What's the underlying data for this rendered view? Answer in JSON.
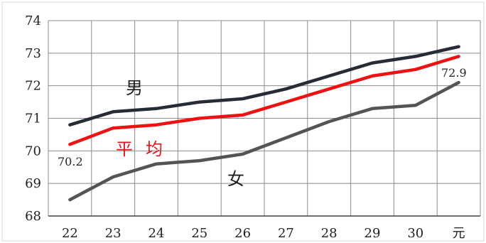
{
  "chart_data": {
    "type": "line",
    "categories": [
      "22",
      "23",
      "24",
      "25",
      "26",
      "27",
      "28",
      "29",
      "30",
      "元"
    ],
    "ylim": [
      68,
      74
    ],
    "yticks": [
      68,
      69,
      70,
      71,
      72,
      73,
      74
    ],
    "grid": true,
    "series": [
      {
        "name": "男",
        "color": "#262b36",
        "values": [
          70.8,
          71.2,
          71.3,
          71.5,
          71.6,
          71.9,
          72.3,
          72.7,
          72.9,
          73.2
        ]
      },
      {
        "name": "平均",
        "color": "#ee1111",
        "values": [
          70.2,
          70.7,
          70.8,
          71.0,
          71.1,
          71.5,
          71.9,
          72.3,
          72.5,
          72.9
        ]
      },
      {
        "name": "女",
        "color": "#545454",
        "values": [
          68.5,
          69.2,
          69.6,
          69.7,
          69.9,
          70.4,
          70.9,
          71.3,
          71.4,
          72.1
        ]
      }
    ],
    "annotations": {
      "male_label": "男",
      "avg_label": "平均",
      "female_label": "女",
      "start_value": "70.2",
      "end_value": "72.9"
    }
  }
}
